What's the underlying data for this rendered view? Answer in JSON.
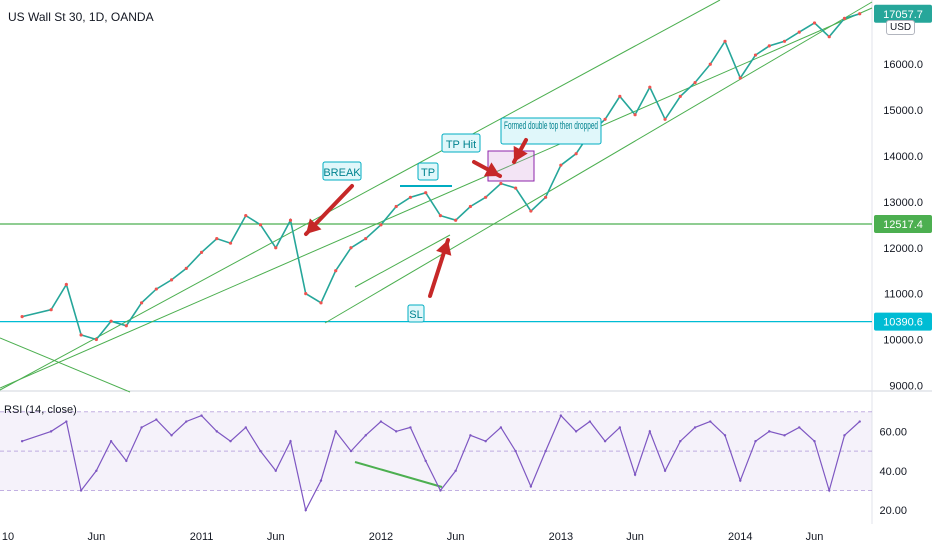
{
  "header": {
    "title": "US Wall St 30, 1D, OANDA",
    "currency": "USD"
  },
  "chart_data": [
    {
      "type": "line",
      "title": "US Wall St 30, 1D, OANDA",
      "ylim": [
        8900,
        17400
      ],
      "y_ticks": [
        {
          "value": 9000,
          "label": "9000.0"
        },
        {
          "value": 10000,
          "label": "10000.0"
        },
        {
          "value": 11000,
          "label": "11000.0"
        },
        {
          "value": 12000,
          "label": "12000.0"
        },
        {
          "value": 13000,
          "label": "13000.0"
        },
        {
          "value": 14000,
          "label": "14000.0"
        },
        {
          "value": 15000,
          "label": "15000.0"
        },
        {
          "value": 16000,
          "label": "16000.0"
        }
      ],
      "x_ticks": [
        "10",
        "Jun",
        "2011",
        "Jun",
        "2012",
        "Jun",
        "2013",
        "Jun",
        "2014",
        "Jun"
      ],
      "series": [
        {
          "color": "#26a69a",
          "x": [
            "2010-01",
            "2010-03",
            "2010-04",
            "2010-05",
            "2010-06",
            "2010-07",
            "2010-08",
            "2010-09",
            "2010-10",
            "2010-11",
            "2010-12",
            "2011-01",
            "2011-02",
            "2011-03",
            "2011-04",
            "2011-05",
            "2011-06",
            "2011-07",
            "2011-08",
            "2011-09",
            "2011-10",
            "2011-11",
            "2011-12",
            "2012-01",
            "2012-02",
            "2012-03",
            "2012-04",
            "2012-05",
            "2012-06",
            "2012-07",
            "2012-08",
            "2012-09",
            "2012-10",
            "2012-11",
            "2012-12",
            "2013-01",
            "2013-02",
            "2013-03",
            "2013-04",
            "2013-05",
            "2013-06",
            "2013-07",
            "2013-08",
            "2013-09",
            "2013-10",
            "2013-11",
            "2013-12",
            "2014-01",
            "2014-02",
            "2014-03",
            "2014-04",
            "2014-05",
            "2014-06",
            "2014-07",
            "2014-08",
            "2014-09"
          ],
          "y": [
            10500,
            10650,
            11200,
            10100,
            10000,
            10400,
            10300,
            10800,
            11100,
            11300,
            11550,
            11900,
            12200,
            12100,
            12700,
            12500,
            12000,
            12600,
            11000,
            10800,
            11500,
            12000,
            12200,
            12500,
            12900,
            13100,
            13200,
            12700,
            12600,
            12900,
            13100,
            13400,
            13300,
            12800,
            13100,
            13800,
            14050,
            14500,
            14800,
            15300,
            14900,
            15500,
            14800,
            15300,
            15600,
            16000,
            16500,
            15700,
            16200,
            16400,
            16500,
            16700,
            16900,
            16600,
            17000,
            17100
          ]
        }
      ],
      "horizontal_levels": [
        {
          "value": 12517.4,
          "label": "12517.4",
          "color": "#4caf50"
        },
        {
          "value": 10390.6,
          "label": "10390.6",
          "color": "#00bcd4"
        }
      ],
      "last_price_label": "17057.7",
      "annotations": [
        "BREAK",
        "TP",
        "TP Hit",
        "Formed double top then dropped",
        "SL"
      ]
    },
    {
      "type": "line",
      "title": "RSI (14, close)",
      "ylim": [
        15,
        80
      ],
      "y_ticks": [
        {
          "value": 20,
          "label": "20.00"
        },
        {
          "value": 40,
          "label": "40.00"
        },
        {
          "value": 60,
          "label": "60.00"
        }
      ],
      "band": [
        30,
        70
      ],
      "series": [
        {
          "color": "#7e57c2",
          "x": [
            "2010-01",
            "2010-03",
            "2010-04",
            "2010-05",
            "2010-06",
            "2010-07",
            "2010-08",
            "2010-09",
            "2010-10",
            "2010-11",
            "2010-12",
            "2011-01",
            "2011-02",
            "2011-03",
            "2011-04",
            "2011-05",
            "2011-06",
            "2011-07",
            "2011-08",
            "2011-09",
            "2011-10",
            "2011-11",
            "2011-12",
            "2012-01",
            "2012-02",
            "2012-03",
            "2012-04",
            "2012-05",
            "2012-06",
            "2012-07",
            "2012-08",
            "2012-09",
            "2012-10",
            "2012-11",
            "2012-12",
            "2013-01",
            "2013-02",
            "2013-03",
            "2013-04",
            "2013-05",
            "2013-06",
            "2013-07",
            "2013-08",
            "2013-09",
            "2013-10",
            "2013-11",
            "2013-12",
            "2014-01",
            "2014-02",
            "2014-03",
            "2014-04",
            "2014-05",
            "2014-06",
            "2014-07",
            "2014-08",
            "2014-09"
          ],
          "y": [
            55,
            60,
            65,
            30,
            40,
            55,
            45,
            62,
            66,
            58,
            65,
            68,
            60,
            55,
            62,
            50,
            40,
            55,
            20,
            35,
            60,
            50,
            58,
            65,
            60,
            62,
            45,
            30,
            40,
            58,
            55,
            62,
            50,
            32,
            50,
            68,
            60,
            65,
            55,
            62,
            38,
            60,
            40,
            55,
            62,
            65,
            58,
            35,
            55,
            60,
            58,
            62,
            55,
            30,
            58,
            65
          ]
        }
      ]
    }
  ]
}
